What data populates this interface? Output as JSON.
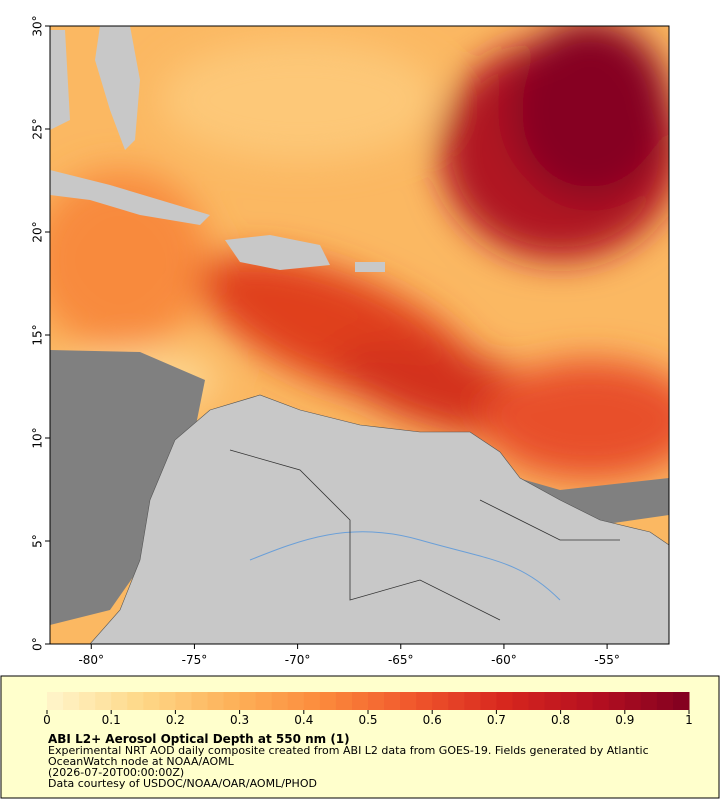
{
  "chart_data": {
    "type": "map",
    "title": "ABI L2+ Aerosol Optical Depth at 550 nm (1)",
    "notes": [
      "Experimental NRT AOD daily composite created from ABI L2 data from GOES-19. Fields generated by Atlantic",
      "OceanWatch node at NOAA/AOML",
      "(2026-07-20T00:00:00Z)",
      "Data courtesy of USDOC/NOAA/OAR/AOML/PHOD"
    ],
    "xlim": [
      -82,
      -52
    ],
    "xticks": [
      {
        "value": -80,
        "label": "-80°"
      },
      {
        "value": -75,
        "label": "-75°"
      },
      {
        "value": -70,
        "label": "-70°"
      },
      {
        "value": -65,
        "label": "-65°"
      },
      {
        "value": -60,
        "label": "-60°"
      },
      {
        "value": -55,
        "label": "-55°"
      }
    ],
    "ylim": [
      0,
      30
    ],
    "yticks": [
      {
        "value": 0,
        "label": "0°"
      },
      {
        "value": 5,
        "label": "5°"
      },
      {
        "value": 10,
        "label": "10°"
      },
      {
        "value": 15,
        "label": "15°"
      },
      {
        "value": 20,
        "label": "20°"
      },
      {
        "value": 25,
        "label": "25°"
      },
      {
        "value": 30,
        "label": "30°"
      }
    ],
    "clim": [
      0,
      1
    ],
    "cticks": [
      0,
      0.1,
      0.2,
      0.3,
      0.4,
      0.5,
      0.6,
      0.7,
      0.8,
      0.9,
      1
    ],
    "colormap": [
      "#fff5cc",
      "#fed98a",
      "#fdb25a",
      "#fc8a3c",
      "#f0572c",
      "#d7261e",
      "#b40f20",
      "#800020"
    ]
  }
}
